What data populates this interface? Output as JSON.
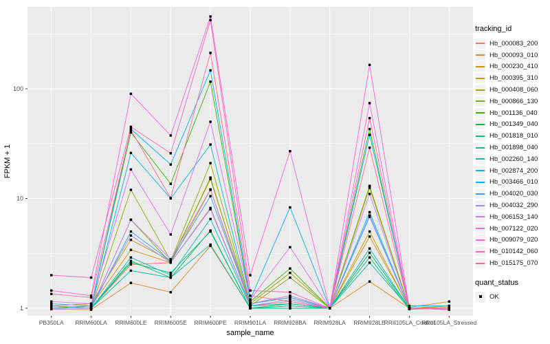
{
  "chart_data": {
    "type": "line",
    "title": "",
    "xlabel": "sample_name",
    "ylabel": "FPKM + 1",
    "y_scale": "log10",
    "legend_position": "right",
    "grid": true,
    "panel_bg": "#EBEBEB",
    "grid_color": "#FFFFFF",
    "tick_label_color": "#4D4D4D",
    "axis_title_color": "#000000",
    "point_color": "#000000",
    "ylim": [
      0.85,
      560
    ],
    "y_ticks": [
      1,
      10,
      100
    ],
    "y_tick_labels": [
      "1",
      "10",
      "100"
    ],
    "y_minor_ticks": [
      3.162,
      31.62,
      316.2
    ],
    "categories": [
      "PB350LA",
      "RRIM600LA",
      "RRIM600LE",
      "RRIM600SE",
      "RRIM600PE",
      "RRIM901LA",
      "RRIM928BA",
      "RRIM928LA",
      "RRIM928LE",
      "RRII105LA_Control",
      "RRII105LA_Stressed"
    ],
    "series": [
      {
        "name": "Hb_000083_200",
        "color": "#F8766D",
        "values": [
          1.0,
          1.0,
          2.5,
          2.6,
          8.2,
          1.05,
          1.15,
          1.0,
          13.0,
          1.0,
          1.0
        ]
      },
      {
        "name": "Hb_000093_010",
        "color": "#E88526",
        "values": [
          0.98,
          0.97,
          1.7,
          1.4,
          3.7,
          1.0,
          1.0,
          1.0,
          1.75,
          1.0,
          1.02
        ]
      },
      {
        "name": "Hb_000230_410",
        "color": "#D89000",
        "values": [
          1.0,
          1.05,
          3.4,
          2.6,
          12.0,
          1.05,
          1.1,
          1.0,
          4.5,
          1.02,
          1.15
        ]
      },
      {
        "name": "Hb_000395_310",
        "color": "#C09B00",
        "values": [
          1.05,
          1.1,
          4.2,
          2.7,
          15.0,
          1.1,
          1.25,
          1.0,
          5.0,
          1.0,
          1.05
        ]
      },
      {
        "name": "Hb_000408_060",
        "color": "#A3A500",
        "values": [
          1.0,
          1.0,
          12.0,
          2.7,
          21.0,
          1.1,
          2.1,
          1.0,
          12.5,
          1.0,
          1.0
        ]
      },
      {
        "name": "Hb_000866_130",
        "color": "#7CAE00",
        "values": [
          1.0,
          1.0,
          6.4,
          2.6,
          15.5,
          1.05,
          1.9,
          1.0,
          13.0,
          1.0,
          1.0
        ]
      },
      {
        "name": "Hb_001136_040",
        "color": "#39B600",
        "values": [
          1.0,
          1.05,
          40.0,
          13.6,
          116.0,
          1.15,
          2.3,
          1.0,
          43.0,
          1.0,
          1.0
        ]
      },
      {
        "name": "Hb_001349_040",
        "color": "#00BB4E",
        "values": [
          1.0,
          1.0,
          2.7,
          1.9,
          5.1,
          1.0,
          1.1,
          1.0,
          3.2,
          1.0,
          1.0
        ]
      },
      {
        "name": "Hb_001818_010",
        "color": "#00BF7D",
        "values": [
          1.0,
          1.0,
          2.6,
          2.1,
          5.0,
          1.0,
          1.05,
          1.0,
          2.9,
          0.98,
          1.0
        ]
      },
      {
        "name": "Hb_001898_040",
        "color": "#00C1A3",
        "values": [
          1.0,
          1.0,
          2.2,
          1.9,
          3.8,
          1.0,
          1.0,
          1.0,
          2.6,
          1.0,
          1.0
        ]
      },
      {
        "name": "Hb_002260_140",
        "color": "#00BFC4",
        "values": [
          1.0,
          1.0,
          2.9,
          2.0,
          6.5,
          1.05,
          1.1,
          1.0,
          3.5,
          1.0,
          1.0
        ]
      },
      {
        "name": "Hb_002874_200",
        "color": "#00BAE0",
        "values": [
          1.05,
          1.0,
          26.0,
          10.0,
          31.0,
          1.1,
          1.3,
          1.0,
          7.5,
          1.0,
          1.0
        ]
      },
      {
        "name": "Hb_003466_010",
        "color": "#00B0F6",
        "values": [
          1.1,
          1.05,
          43.0,
          20.4,
          147.0,
          1.2,
          8.3,
          1.0,
          38.0,
          1.05,
          1.05
        ]
      },
      {
        "name": "Hb_004020_030",
        "color": "#35A2FF",
        "values": [
          1.05,
          1.0,
          5.0,
          2.7,
          10.5,
          1.1,
          1.25,
          1.0,
          7.0,
          1.0,
          1.0
        ]
      },
      {
        "name": "Hb_004032_290",
        "color": "#9590FF",
        "values": [
          1.1,
          1.05,
          4.6,
          2.6,
          8.0,
          1.05,
          1.2,
          1.0,
          6.8,
          1.0,
          1.0
        ]
      },
      {
        "name": "Hb_006153_140",
        "color": "#C77CFF",
        "values": [
          1.0,
          1.0,
          6.4,
          2.8,
          12.1,
          1.1,
          1.3,
          1.0,
          11.0,
          1.0,
          1.0
        ]
      },
      {
        "name": "Hb_007122_020",
        "color": "#E76BF3",
        "values": [
          1.15,
          1.1,
          18.4,
          4.7,
          50.0,
          1.2,
          3.6,
          1.0,
          74.0,
          1.0,
          1.0
        ]
      },
      {
        "name": "Hb_009079_020",
        "color": "#FA62DB",
        "values": [
          1.45,
          1.3,
          90.0,
          37.5,
          455.0,
          2.0,
          27.0,
          1.0,
          165.0,
          1.0,
          0.97
        ]
      },
      {
        "name": "Hb_010142_060",
        "color": "#FF62BC",
        "values": [
          2.0,
          1.9,
          45.0,
          25.8,
          423.0,
          1.45,
          1.4,
          1.0,
          54.0,
          1.0,
          0.97
        ]
      },
      {
        "name": "Hb_015175_070",
        "color": "#FF6A98",
        "values": [
          1.35,
          1.25,
          42.0,
          10.1,
          212.0,
          1.3,
          1.15,
          1.0,
          29.0,
          1.0,
          0.98
        ]
      }
    ]
  },
  "legend": {
    "title": "tracking_id"
  },
  "legend2": {
    "title": "quant_status",
    "items": [
      {
        "label": "OK",
        "marker": "black-square",
        "color": "#000000"
      }
    ]
  }
}
